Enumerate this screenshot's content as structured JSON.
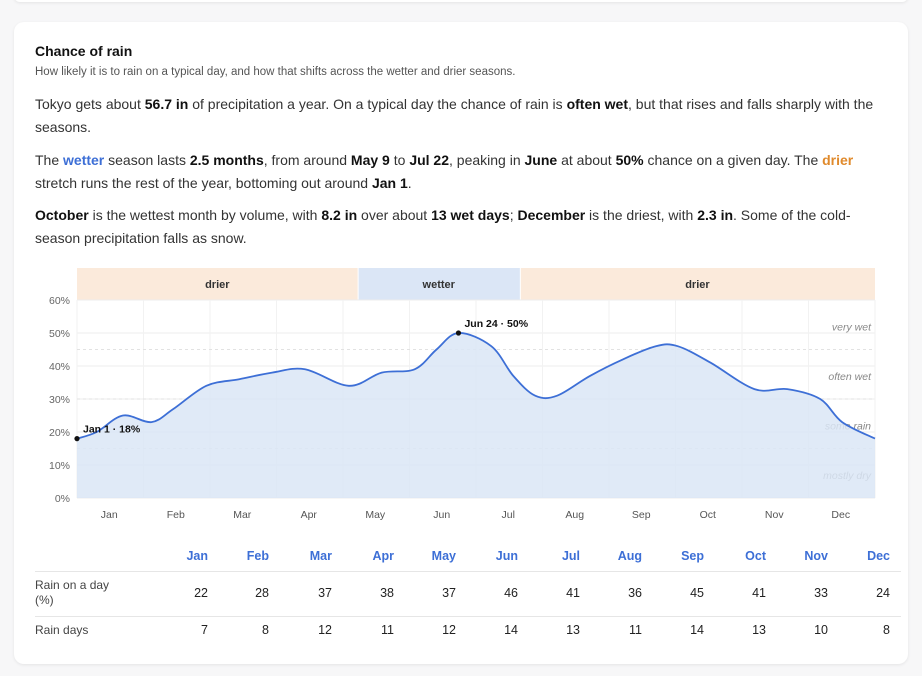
{
  "title": "Chance of rain",
  "subtitle": "How likely it is to rain on a typical day, and how that shifts across the wetter and drier seasons.",
  "paragraphs": {
    "p1": {
      "a": "Tokyo gets about ",
      "b": "56.7 in",
      "c": " of precipitation a year. On a typical day the chance of rain is ",
      "d": "often wet",
      "e": ", but that rises and falls sharply with the seasons."
    },
    "p2": {
      "a": "The ",
      "wet": "wetter",
      "b": " season lasts ",
      "c": "2.5 months",
      "d": ", from around ",
      "e": "May 9",
      "f": " to ",
      "g": "Jul 22",
      "h": ", peaking in ",
      "i": "June",
      "j": " at about ",
      "k": "50%",
      "l": " chance on a given day. The ",
      "dry": "drier",
      "m": " stretch runs the rest of the year, bottoming out around ",
      "n": "Jan 1",
      "o": "."
    },
    "p3": {
      "a": "October",
      "b": " is the wettest month by volume, with ",
      "c": "8.2 in",
      "d": " over about ",
      "e": "13 wet days",
      "f": "; ",
      "g": "December",
      "h": " is the driest, with ",
      "i": "2.3 in",
      "j": ". Some of the cold-season precipitation falls as snow."
    }
  },
  "colors": {
    "line": "#3d6fd6",
    "area": "#dbe6f6",
    "drier_band": "#fbeadb",
    "wetter_band": "#dbe6f6",
    "accent_wet": "#3d6fd6",
    "accent_dry": "#e08a2c"
  },
  "chart_data": {
    "type": "area",
    "x_unit": "day of year",
    "ylim": [
      0,
      60
    ],
    "y_ticks": [
      "0%",
      "10%",
      "20%",
      "30%",
      "40%",
      "50%",
      "60%"
    ],
    "x_tick_labels": [
      "Jan",
      "Feb",
      "Mar",
      "Apr",
      "May",
      "Jun",
      "Jul",
      "Aug",
      "Sep",
      "Oct",
      "Nov",
      "Dec"
    ],
    "seasons": [
      {
        "label": "drier",
        "start": 1,
        "end": 129
      },
      {
        "label": "wetter",
        "start": 129,
        "end": 203
      },
      {
        "label": "drier",
        "start": 203,
        "end": 365
      }
    ],
    "zones": [
      {
        "label": "very wet",
        "y": 52
      },
      {
        "label": "often wet",
        "y": 37
      },
      {
        "label": "some rain",
        "y": 22
      },
      {
        "label": "mostly dry",
        "y": 7
      }
    ],
    "annotations": [
      {
        "label": "Jan 1 · 18%",
        "x": 1,
        "y": 18
      },
      {
        "label": "Jun 24 · 50%",
        "x": 175,
        "y": 50
      }
    ],
    "series": [
      {
        "x": [
          1,
          10,
          22,
          35,
          45,
          60,
          75,
          90,
          105,
          125,
          140,
          155,
          165,
          175,
          190,
          200,
          210,
          220,
          235,
          250,
          265,
          275,
          290,
          310,
          325,
          340,
          350,
          365
        ],
        "y": [
          18,
          20,
          25,
          23,
          27,
          34,
          36,
          38,
          39,
          34,
          38,
          39,
          45,
          50,
          46,
          37,
          31,
          31,
          37,
          42,
          46,
          46,
          41,
          33,
          33,
          30,
          23,
          18
        ]
      }
    ]
  },
  "table": {
    "months": [
      "Jan",
      "Feb",
      "Mar",
      "Apr",
      "May",
      "Jun",
      "Jul",
      "Aug",
      "Sep",
      "Oct",
      "Nov",
      "Dec"
    ],
    "rows": [
      {
        "label": "Rain on a day (%)",
        "values": [
          "22",
          "28",
          "37",
          "38",
          "37",
          "46",
          "41",
          "36",
          "45",
          "41",
          "33",
          "24"
        ]
      },
      {
        "label": "Rain days",
        "values": [
          "7",
          "8",
          "12",
          "11",
          "12",
          "14",
          "13",
          "11",
          "14",
          "13",
          "10",
          "8"
        ]
      }
    ]
  }
}
